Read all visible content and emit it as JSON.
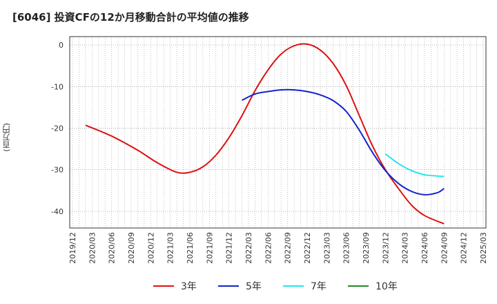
{
  "chart_data": {
    "type": "line",
    "title": "[6046]  投資CFの12か月移動合計の平均値の推移",
    "ylabel": "(百万円)",
    "xlabel": "",
    "ylim": [
      -44,
      2
    ],
    "yticks": [
      0,
      -10,
      -20,
      -30,
      -40
    ],
    "x_tick_labels": [
      "2019/12",
      "2020/03",
      "2020/06",
      "2020/09",
      "2020/12",
      "2021/03",
      "2021/06",
      "2021/09",
      "2021/12",
      "2022/03",
      "2022/06",
      "2022/09",
      "2022/12",
      "2023/03",
      "2023/06",
      "2023/09",
      "2023/12",
      "2024/03",
      "2024/06",
      "2024/09",
      "2024/12",
      "2025/03"
    ],
    "grid": true,
    "legend_placement": "bottom",
    "series": [
      {
        "name": "3年",
        "color": "#dd1111",
        "points": [
          [
            "2020/02",
            -19.3
          ],
          [
            "2020/06",
            -21.9
          ],
          [
            "2020/10",
            -25.3
          ],
          [
            "2021/01",
            -28.3
          ],
          [
            "2021/04",
            -30.6
          ],
          [
            "2021/06",
            -30.6
          ],
          [
            "2021/08",
            -29.3
          ],
          [
            "2021/10",
            -26.5
          ],
          [
            "2021/12",
            -22.3
          ],
          [
            "2022/02",
            -17.0
          ],
          [
            "2022/04",
            -11.0
          ],
          [
            "2022/06",
            -6.0
          ],
          [
            "2022/08",
            -2.2
          ],
          [
            "2022/10",
            -0.2
          ],
          [
            "2022/12",
            0.2
          ],
          [
            "2023/02",
            -1.2
          ],
          [
            "2023/04",
            -4.5
          ],
          [
            "2023/06",
            -9.8
          ],
          [
            "2023/08",
            -17.0
          ],
          [
            "2023/10",
            -24.2
          ],
          [
            "2023/12",
            -30.0
          ],
          [
            "2024/02",
            -34.5
          ],
          [
            "2024/04",
            -38.5
          ],
          [
            "2024/06",
            -41.0
          ],
          [
            "2024/09",
            -43.0
          ]
        ]
      },
      {
        "name": "5年",
        "color": "#1122cc",
        "points": [
          [
            "2022/02",
            -13.3
          ],
          [
            "2022/04",
            -11.8
          ],
          [
            "2022/06",
            -11.2
          ],
          [
            "2022/08",
            -10.8
          ],
          [
            "2022/10",
            -10.8
          ],
          [
            "2022/12",
            -11.2
          ],
          [
            "2023/02",
            -12.0
          ],
          [
            "2023/04",
            -13.4
          ],
          [
            "2023/06",
            -16.0
          ],
          [
            "2023/08",
            -20.5
          ],
          [
            "2023/10",
            -25.8
          ],
          [
            "2023/12",
            -30.2
          ],
          [
            "2024/02",
            -33.3
          ],
          [
            "2024/04",
            -35.2
          ],
          [
            "2024/06",
            -36.0
          ],
          [
            "2024/08",
            -35.5
          ],
          [
            "2024/09",
            -34.5
          ]
        ]
      },
      {
        "name": "7年",
        "color": "#22e5ee",
        "points": [
          [
            "2023/12",
            -26.2
          ],
          [
            "2024/02",
            -28.5
          ],
          [
            "2024/04",
            -30.2
          ],
          [
            "2024/06",
            -31.2
          ],
          [
            "2024/08",
            -31.5
          ],
          [
            "2024/09",
            -31.6
          ]
        ]
      },
      {
        "name": "10年",
        "color": "#228822",
        "points": []
      }
    ]
  }
}
